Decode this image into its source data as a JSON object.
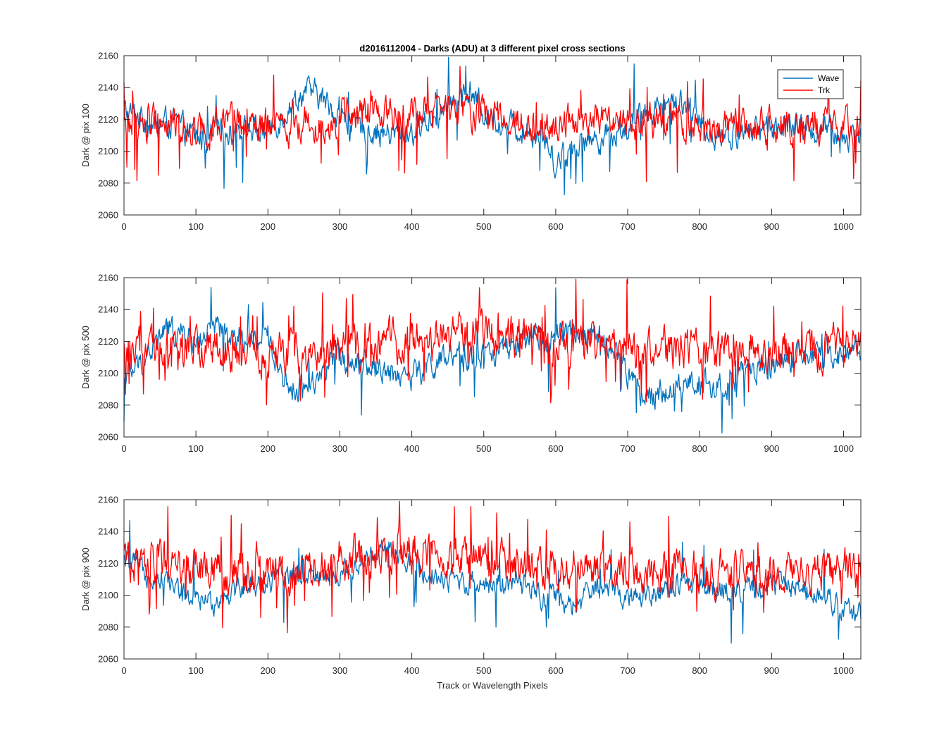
{
  "figure_title": "d2016112004 - Darks (ADU) at 3 different pixel cross sections",
  "shared_xlabel": "Track or Wavelength Pixels",
  "colors": {
    "Wave": "#0072BD",
    "Trk": "#FF0000",
    "axis": "#262626",
    "background": "#ffffff"
  },
  "chart_data": [
    {
      "type": "line",
      "title": "d2016112004 - Darks (ADU) at 3 different pixel cross sections",
      "ylabel": "Dark @ pix 100",
      "xlabel": "",
      "xlim": [
        0,
        1024
      ],
      "ylim": [
        2060,
        2160
      ],
      "xticks": [
        0,
        100,
        200,
        300,
        400,
        500,
        600,
        700,
        800,
        900,
        1000
      ],
      "yticks": [
        2060,
        2080,
        2100,
        2120,
        2140,
        2160
      ],
      "grid": false,
      "legend": {
        "position": "top-right",
        "entries": [
          "Wave",
          "Trk"
        ]
      },
      "series": [
        {
          "name": "Wave",
          "color": "#0072BD",
          "noise": 7,
          "spikes": 0.03,
          "anchors_x": [
            0,
            20,
            40,
            70,
            100,
            130,
            160,
            200,
            230,
            250,
            270,
            300,
            320,
            350,
            370,
            400,
            430,
            460,
            480,
            500,
            540,
            580,
            600,
            630,
            660,
            700,
            730,
            760,
            780,
            800,
            830,
            870,
            900,
            940,
            980,
            1000,
            1024
          ],
          "anchors_y": [
            2125,
            2122,
            2118,
            2118,
            2108,
            2110,
            2114,
            2112,
            2128,
            2138,
            2135,
            2122,
            2115,
            2113,
            2110,
            2112,
            2122,
            2132,
            2138,
            2124,
            2115,
            2112,
            2093,
            2105,
            2108,
            2115,
            2127,
            2131,
            2132,
            2115,
            2110,
            2112,
            2116,
            2114,
            2112,
            2108,
            2112
          ]
        },
        {
          "name": "Trk",
          "color": "#FF0000",
          "noise": 9,
          "spikes": 0.05,
          "anchors_x": [
            0,
            50,
            100,
            150,
            200,
            250,
            300,
            350,
            400,
            450,
            500,
            550,
            600,
            650,
            700,
            750,
            800,
            850,
            900,
            950,
            1000,
            1024
          ],
          "anchors_y": [
            2118,
            2118,
            2115,
            2115,
            2114,
            2118,
            2120,
            2125,
            2124,
            2127,
            2124,
            2118,
            2117,
            2118,
            2116,
            2118,
            2115,
            2114,
            2115,
            2117,
            2116,
            2120
          ]
        }
      ]
    },
    {
      "type": "line",
      "title": "",
      "ylabel": "Dark @ pix 500",
      "xlabel": "",
      "xlim": [
        0,
        1024
      ],
      "ylim": [
        2060,
        2160
      ],
      "xticks": [
        0,
        100,
        200,
        300,
        400,
        500,
        600,
        700,
        800,
        900,
        1000
      ],
      "yticks": [
        2060,
        2080,
        2100,
        2120,
        2140,
        2160
      ],
      "grid": false,
      "series": [
        {
          "name": "Wave",
          "color": "#0072BD",
          "noise": 7,
          "spikes": 0.03,
          "anchors_x": [
            0,
            30,
            60,
            100,
            130,
            160,
            200,
            230,
            260,
            300,
            330,
            360,
            400,
            430,
            460,
            500,
            540,
            580,
            620,
            660,
            690,
            720,
            760,
            800,
            830,
            870,
            900,
            950,
            1000,
            1024
          ],
          "anchors_y": [
            2095,
            2110,
            2128,
            2120,
            2128,
            2118,
            2122,
            2090,
            2095,
            2110,
            2108,
            2102,
            2098,
            2106,
            2108,
            2112,
            2115,
            2122,
            2125,
            2122,
            2108,
            2085,
            2090,
            2095,
            2090,
            2100,
            2105,
            2110,
            2112,
            2115
          ]
        },
        {
          "name": "Trk",
          "color": "#FF0000",
          "noise": 10,
          "spikes": 0.06,
          "anchors_x": [
            0,
            100,
            200,
            300,
            400,
            450,
            500,
            550,
            600,
            650,
            700,
            750,
            800,
            850,
            900,
            950,
            1000,
            1024
          ],
          "anchors_y": [
            2114,
            2115,
            2112,
            2115,
            2122,
            2124,
            2126,
            2122,
            2120,
            2118,
            2115,
            2115,
            2114,
            2113,
            2114,
            2114,
            2115,
            2116
          ]
        }
      ]
    },
    {
      "type": "line",
      "title": "",
      "ylabel": "Dark @ pix 900",
      "xlabel": "Track or Wavelength Pixels",
      "xlim": [
        0,
        1024
      ],
      "ylim": [
        2060,
        2160
      ],
      "xticks": [
        0,
        100,
        200,
        300,
        400,
        500,
        600,
        700,
        800,
        900,
        1000
      ],
      "yticks": [
        2060,
        2080,
        2100,
        2120,
        2140,
        2160
      ],
      "grid": false,
      "series": [
        {
          "name": "Wave",
          "color": "#0072BD",
          "noise": 6,
          "spikes": 0.03,
          "anchors_x": [
            0,
            30,
            60,
            90,
            120,
            150,
            200,
            250,
            300,
            330,
            360,
            400,
            450,
            500,
            550,
            580,
            620,
            650,
            680,
            700,
            750,
            800,
            850,
            900,
            950,
            980,
            1000,
            1024
          ],
          "anchors_y": [
            2122,
            2115,
            2110,
            2098,
            2095,
            2104,
            2108,
            2115,
            2112,
            2122,
            2128,
            2118,
            2110,
            2108,
            2106,
            2100,
            2092,
            2102,
            2105,
            2098,
            2104,
            2106,
            2102,
            2108,
            2104,
            2100,
            2090,
            2087
          ]
        },
        {
          "name": "Trk",
          "color": "#FF0000",
          "noise": 10,
          "spikes": 0.06,
          "anchors_x": [
            0,
            50,
            100,
            150,
            200,
            250,
            300,
            350,
            400,
            450,
            500,
            550,
            600,
            650,
            700,
            750,
            800,
            850,
            900,
            950,
            1000,
            1024
          ],
          "anchors_y": [
            2122,
            2120,
            2118,
            2114,
            2112,
            2112,
            2122,
            2126,
            2128,
            2126,
            2122,
            2118,
            2116,
            2115,
            2114,
            2114,
            2114,
            2113,
            2114,
            2115,
            2116,
            2116
          ]
        }
      ]
    }
  ]
}
